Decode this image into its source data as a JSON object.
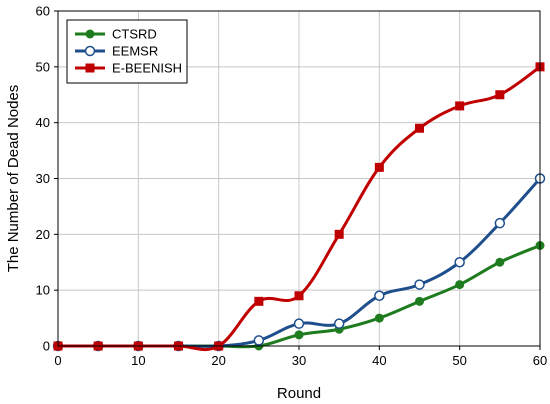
{
  "chart_data": {
    "type": "line",
    "xlabel": "Round",
    "ylabel": "The Number of Dead Nodes",
    "xlim": [
      0,
      60
    ],
    "ylim": [
      0,
      60
    ],
    "xticks": [
      0,
      10,
      20,
      30,
      40,
      50,
      60
    ],
    "yticks": [
      0,
      10,
      20,
      30,
      40,
      50,
      60
    ],
    "grid": true,
    "legend_position": "top-left",
    "x": [
      0,
      5,
      10,
      15,
      20,
      25,
      30,
      35,
      40,
      45,
      50,
      55,
      60
    ],
    "series": [
      {
        "name": "CTSRD",
        "color": "#1e7b1e",
        "marker": "filled-circle",
        "values": [
          0,
          0,
          0,
          0,
          0,
          0,
          2,
          3,
          5,
          8,
          11,
          15,
          18
        ]
      },
      {
        "name": "EEMSR",
        "color": "#1f4e8c",
        "marker": "open-circle",
        "values": [
          0,
          0,
          0,
          0,
          0,
          1,
          4,
          4,
          9,
          11,
          15,
          22,
          30
        ]
      },
      {
        "name": "E-BEENISH",
        "color": "#c00000",
        "marker": "square",
        "values": [
          0,
          0,
          0,
          0,
          0,
          8,
          9,
          20,
          32,
          39,
          43,
          45,
          50
        ]
      }
    ]
  }
}
